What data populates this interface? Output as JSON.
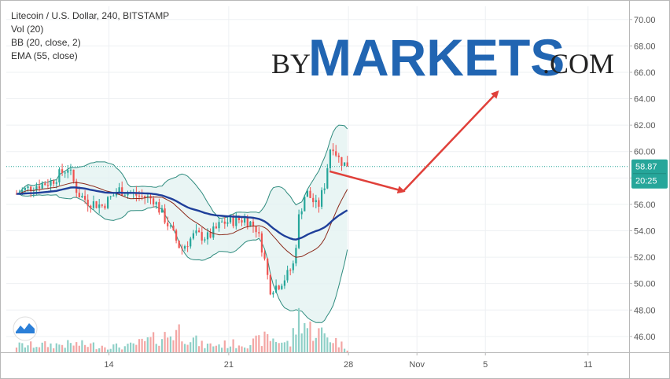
{
  "chart_data": {
    "type": "candlestick",
    "legend": {
      "title": "Litecoin / U.S. Dollar, 240, BITSTAMP",
      "indicators": [
        "Vol (20)",
        "BB (20, close, 2)",
        "EMA (55, close)"
      ]
    },
    "watermark": {
      "by": "BY",
      "markets": "MARKETS",
      "com": ".COM"
    },
    "x_axis": {
      "ticks": [
        "14",
        "21",
        "28",
        "Nov",
        "5",
        "11"
      ],
      "tick_days": [
        14,
        21,
        28,
        32,
        36,
        42
      ]
    },
    "y_axis": {
      "ylim": [
        44.8,
        71.0
      ],
      "ticks": [
        "70.00",
        "68.00",
        "66.00",
        "64.00",
        "62.00",
        "60.00",
        "58.00",
        "56.00",
        "54.00",
        "52.00",
        "50.00",
        "48.00",
        "46.00"
      ]
    },
    "current_price": {
      "value": 58.87,
      "label": "58.87",
      "countdown": "20:25"
    },
    "arrows": [
      {
        "from": [
          26.9,
          58.5
        ],
        "to": [
          31.2,
          57.0
        ]
      },
      {
        "from": [
          31.2,
          57.0
        ],
        "to": [
          36.7,
          64.5
        ]
      }
    ],
    "colors": {
      "up": "#26a69a",
      "down": "#ef5350",
      "up_volume": "#8fd0c7",
      "down_volume": "#f3a6a4",
      "bb_band": "#2e8b7e",
      "bb_fill": "#e3f3f1",
      "bb_basis": "#8b2a1b",
      "ema": "#1f3f9a",
      "arrow": "#e0403a",
      "price_tag": "#26a69a",
      "price_line": "#26a69a"
    },
    "price_keys": [
      [
        8.6,
        56.8
      ],
      [
        9.6,
        57.4
      ],
      [
        10.6,
        57.7
      ],
      [
        11.6,
        58.8
      ],
      [
        12.2,
        56.8
      ],
      [
        12.8,
        56.2
      ],
      [
        13.6,
        55.9
      ],
      [
        14.6,
        57.1
      ],
      [
        15.6,
        56.7
      ],
      [
        16.6,
        56.4
      ],
      [
        17.4,
        54.6
      ],
      [
        18.2,
        52.6
      ],
      [
        19.0,
        53.7
      ],
      [
        19.8,
        53.5
      ],
      [
        20.6,
        54.6
      ],
      [
        21.4,
        54.8
      ],
      [
        22.0,
        54.9
      ],
      [
        22.6,
        54.2
      ],
      [
        23.0,
        52.5
      ],
      [
        23.4,
        49.6
      ],
      [
        23.9,
        49.9
      ],
      [
        24.4,
        50.6
      ],
      [
        24.8,
        51.5
      ],
      [
        25.1,
        55.0
      ],
      [
        25.5,
        57.0
      ],
      [
        25.9,
        56.3
      ],
      [
        26.2,
        55.7
      ],
      [
        26.6,
        57.5
      ],
      [
        27.0,
        60.8
      ],
      [
        27.4,
        59.5
      ],
      [
        27.8,
        59.0
      ],
      [
        27.96,
        58.87
      ]
    ],
    "volume_keys": [
      [
        8.6,
        0.1
      ],
      [
        12.0,
        0.12
      ],
      [
        15.0,
        0.08
      ],
      [
        17.6,
        0.26
      ],
      [
        18.0,
        0.34
      ],
      [
        19.5,
        0.1
      ],
      [
        22.4,
        0.14
      ],
      [
        23.3,
        0.22
      ],
      [
        24.6,
        0.12
      ],
      [
        25.2,
        0.6
      ],
      [
        25.6,
        0.36
      ],
      [
        26.4,
        0.28
      ],
      [
        27.2,
        0.18
      ],
      [
        27.96,
        0.05
      ]
    ]
  }
}
